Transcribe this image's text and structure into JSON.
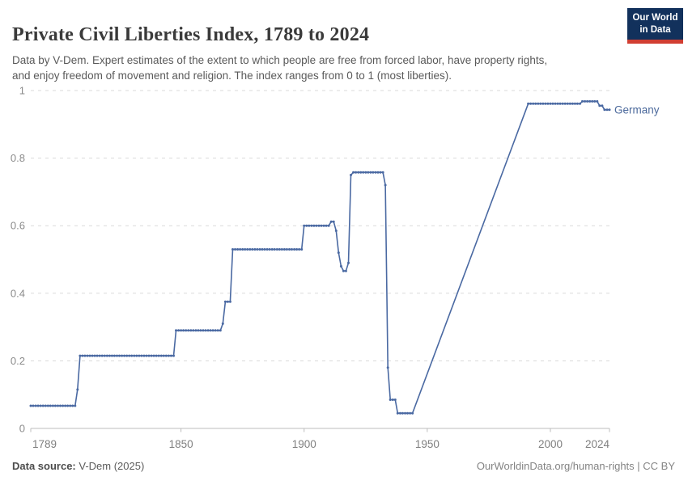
{
  "header": {
    "title": "Private Civil Liberties Index, 1789 to 2024",
    "subtitle": "Data by V-Dem. Expert estimates of the extent to which people are free from forced labor, have property rights,\nand enjoy freedom of movement and religion. The index ranges from 0 to 1 (most liberties).",
    "logo": {
      "line1": "Our World",
      "line2": "in Data",
      "bg_color": "#12315c",
      "bar_color": "#d13e32"
    }
  },
  "footer": {
    "source_label": "Data source:",
    "source_value": " V-Dem (2025)",
    "credit": "OurWorldinData.org/human-rights | CC BY"
  },
  "chart_data": {
    "type": "line",
    "title": "Private Civil Liberties Index, 1789 to 2024",
    "xlabel": "",
    "ylabel": "",
    "xlim": [
      1789,
      2024
    ],
    "ylim": [
      0,
      1
    ],
    "x_ticks": [
      1789,
      1850,
      1900,
      1950,
      2000,
      2024
    ],
    "y_ticks": [
      0,
      0.2,
      0.4,
      0.6,
      0.8,
      1
    ],
    "grid": "horizontal-dashed",
    "legend_position": "end-of-line-label",
    "colors": {
      "grid": "#dadada",
      "axis": "#bcbcbc",
      "y_tick_text": "#8b8b8b",
      "x_tick_text": "#808080"
    },
    "series": [
      {
        "name": "Germany",
        "color": "#4a69a2",
        "label_color": "#4c6a9c",
        "markers": true,
        "gap_years": [
          1945,
          1990
        ],
        "points": [
          [
            1789,
            1807,
            0.067
          ],
          [
            1808,
            1808,
            0.115
          ],
          [
            1809,
            1847,
            0.215
          ],
          [
            1848,
            1866,
            0.29
          ],
          [
            1867,
            1867,
            0.31
          ],
          [
            1868,
            1870,
            0.375
          ],
          [
            1871,
            1899,
            0.53
          ],
          [
            1900,
            1910,
            0.6
          ],
          [
            1911,
            1912,
            0.612
          ],
          [
            1913,
            1913,
            0.585
          ],
          [
            1914,
            1914,
            0.52
          ],
          [
            1915,
            1915,
            0.48
          ],
          [
            1916,
            1917,
            0.466
          ],
          [
            1918,
            1918,
            0.49
          ],
          [
            1919,
            1919,
            0.75
          ],
          [
            1920,
            1932,
            0.758
          ],
          [
            1933,
            1933,
            0.72
          ],
          [
            1934,
            1934,
            0.18
          ],
          [
            1935,
            1937,
            0.085
          ],
          [
            1938,
            1944,
            0.045
          ],
          [
            1991,
            2012,
            0.961
          ],
          [
            2013,
            2019,
            0.968
          ],
          [
            2020,
            2021,
            0.955
          ],
          [
            2022,
            2024,
            0.943
          ]
        ]
      }
    ]
  }
}
